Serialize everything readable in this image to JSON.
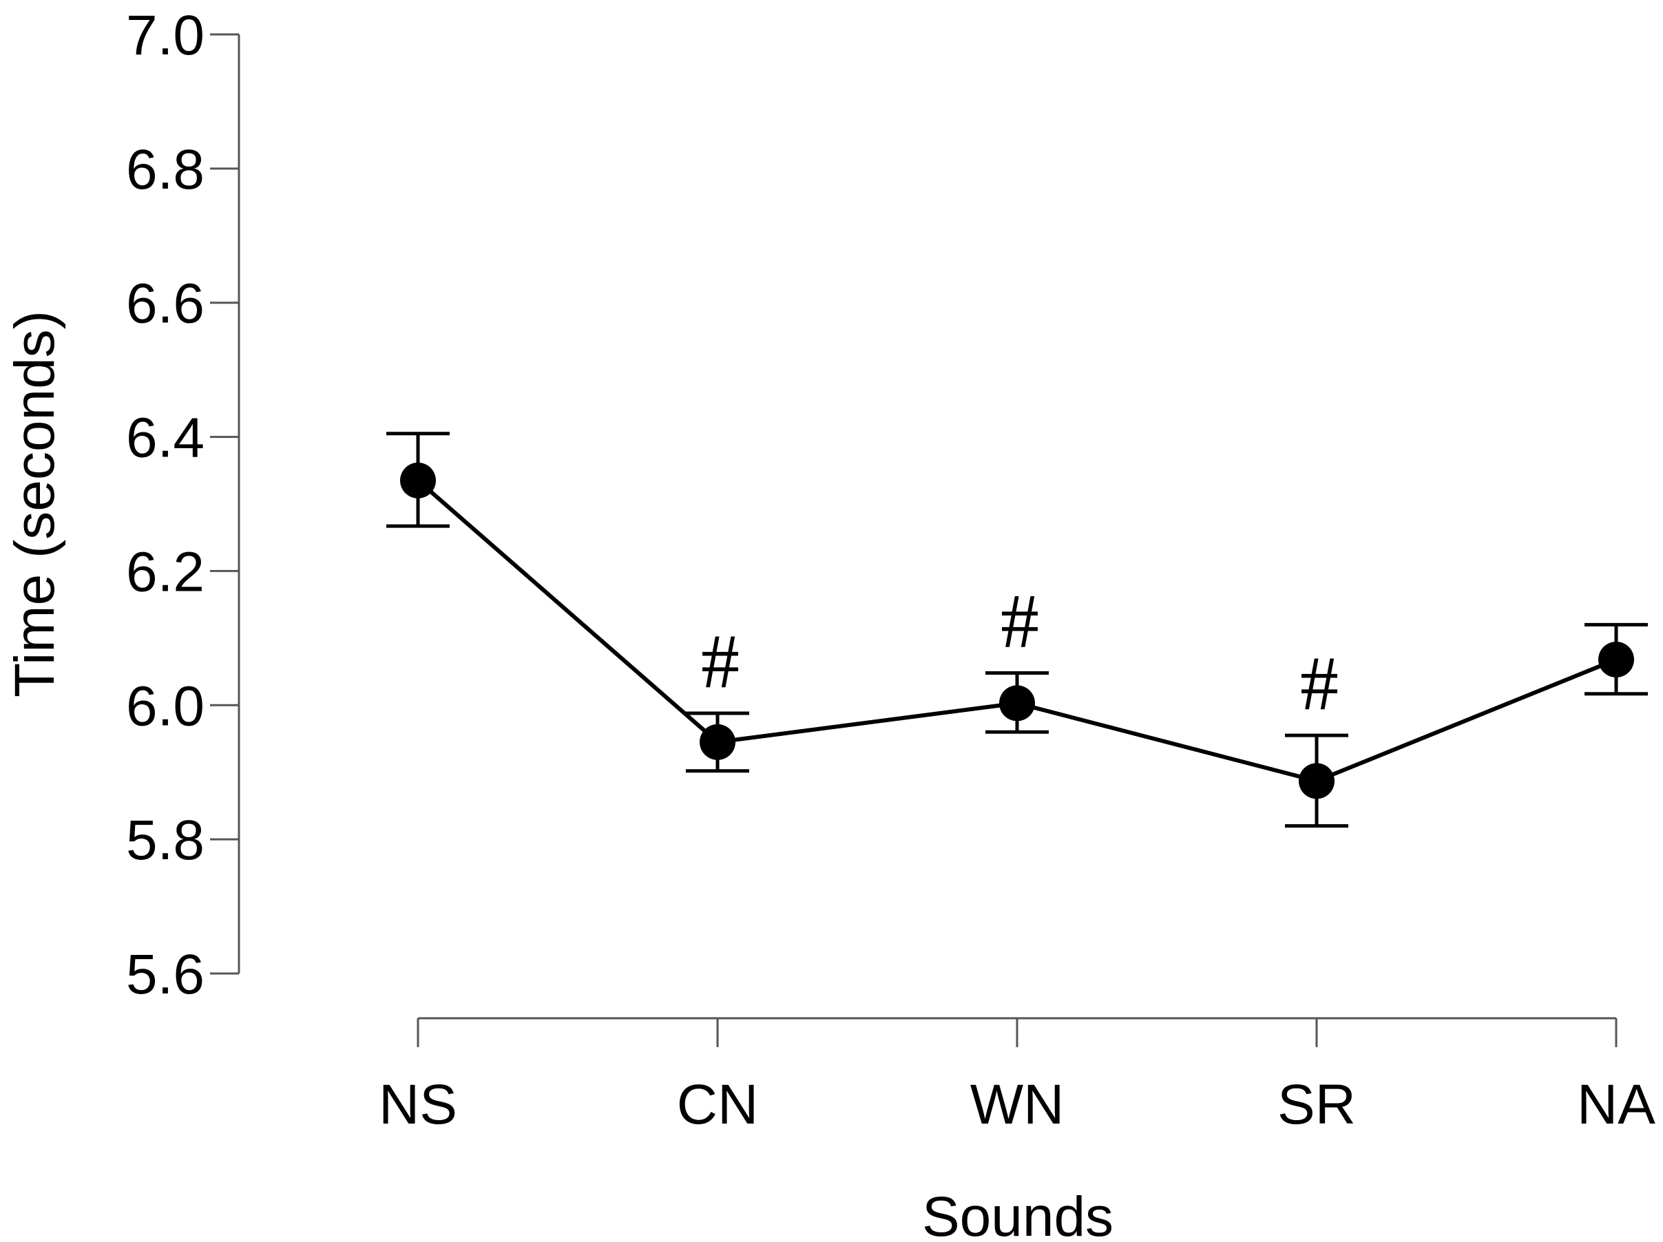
{
  "chart_data": {
    "type": "line",
    "title": "",
    "xlabel": "Sounds",
    "ylabel": "Time (seconds)",
    "categories": [
      "NS",
      "CN",
      "WN",
      "SR",
      "NA"
    ],
    "ylim": [
      5.6,
      7.0
    ],
    "yticks": [
      "5.6",
      "5.8",
      "6.0",
      "6.2",
      "6.4",
      "6.6",
      "6.8",
      "7.0"
    ],
    "grid": false,
    "series": [
      {
        "name": "Time",
        "values": [
          6.335,
          5.945,
          6.003,
          5.887,
          6.068
        ],
        "err_low": [
          6.267,
          5.902,
          5.96,
          5.82,
          6.017
        ],
        "err_high": [
          6.405,
          5.988,
          6.048,
          5.955,
          6.12
        ],
        "annotations": [
          "",
          "#",
          "#",
          "#",
          ""
        ]
      }
    ],
    "colors": {
      "line": "#000000",
      "axis": "#555555"
    }
  }
}
